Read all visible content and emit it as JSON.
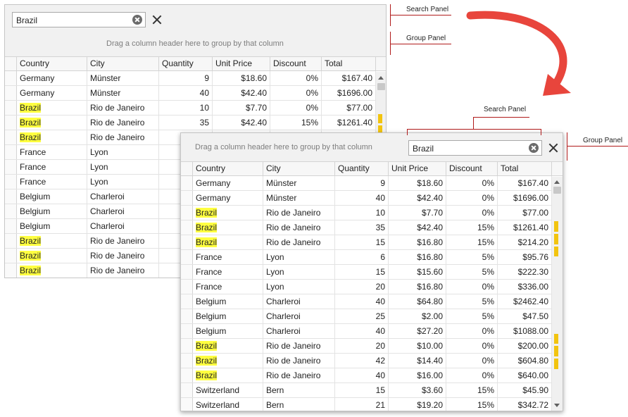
{
  "search_text": "Brazil",
  "group_panel_text": "Drag a column header here to group by that column",
  "callouts": {
    "search_panel": "Search Panel",
    "group_panel": "Group Panel"
  },
  "columns": [
    "Country",
    "City",
    "Quantity",
    "Unit Price",
    "Discount",
    "Total"
  ],
  "rows": [
    {
      "country": "Germany",
      "city": "Münster",
      "quantity": "9",
      "unit_price": "$18.60",
      "discount": "0%",
      "total": "$167.40"
    },
    {
      "country": "Germany",
      "city": "Münster",
      "quantity": "40",
      "unit_price": "$42.40",
      "discount": "0%",
      "total": "$1696.00"
    },
    {
      "country": "Brazil",
      "city": "Rio de Janeiro",
      "quantity": "10",
      "unit_price": "$7.70",
      "discount": "0%",
      "total": "$77.00"
    },
    {
      "country": "Brazil",
      "city": "Rio de Janeiro",
      "quantity": "35",
      "unit_price": "$42.40",
      "discount": "15%",
      "total": "$1261.40"
    },
    {
      "country": "Brazil",
      "city": "Rio de Janeiro",
      "quantity": "15",
      "unit_price": "$16.80",
      "discount": "15%",
      "total": "$214.20"
    },
    {
      "country": "France",
      "city": "Lyon",
      "quantity": "6",
      "unit_price": "$16.80",
      "discount": "5%",
      "total": "$95.76"
    },
    {
      "country": "France",
      "city": "Lyon",
      "quantity": "15",
      "unit_price": "$15.60",
      "discount": "5%",
      "total": "$222.30"
    },
    {
      "country": "France",
      "city": "Lyon",
      "quantity": "20",
      "unit_price": "$16.80",
      "discount": "0%",
      "total": "$336.00"
    },
    {
      "country": "Belgium",
      "city": "Charleroi",
      "quantity": "40",
      "unit_price": "$64.80",
      "discount": "5%",
      "total": "$2462.40"
    },
    {
      "country": "Belgium",
      "city": "Charleroi",
      "quantity": "25",
      "unit_price": "$2.00",
      "discount": "5%",
      "total": "$47.50"
    },
    {
      "country": "Belgium",
      "city": "Charleroi",
      "quantity": "40",
      "unit_price": "$27.20",
      "discount": "0%",
      "total": "$1088.00"
    },
    {
      "country": "Brazil",
      "city": "Rio de Janeiro",
      "quantity": "20",
      "unit_price": "$10.00",
      "discount": "0%",
      "total": "$200.00"
    },
    {
      "country": "Brazil",
      "city": "Rio de Janeiro",
      "quantity": "42",
      "unit_price": "$14.40",
      "discount": "0%",
      "total": "$604.80"
    },
    {
      "country": "Brazil",
      "city": "Rio de Janeiro",
      "quantity": "40",
      "unit_price": "$16.00",
      "discount": "0%",
      "total": "$640.00"
    },
    {
      "country": "Switzerland",
      "city": "Bern",
      "quantity": "15",
      "unit_price": "$3.60",
      "discount": "15%",
      "total": "$45.90"
    },
    {
      "country": "Switzerland",
      "city": "Bern",
      "quantity": "21",
      "unit_price": "$19.20",
      "discount": "15%",
      "total": "$342.72"
    }
  ],
  "colors": {
    "highlight": "#ffff40",
    "callout": "#b01a1a",
    "arrow": "#e8453c",
    "scroll_marker": "#f2c40f"
  }
}
